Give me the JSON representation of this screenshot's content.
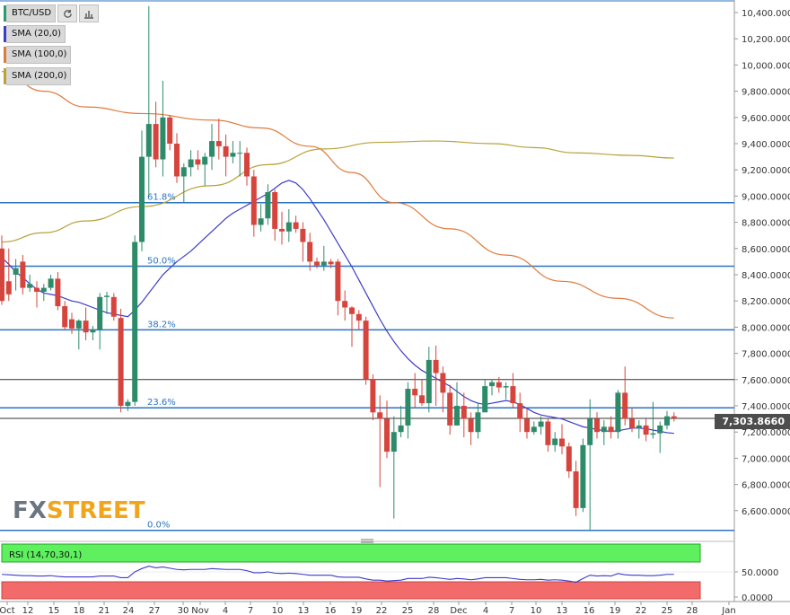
{
  "toolbar": {
    "symbol": "BTC/USD",
    "refresh_icon": "refresh-icon",
    "chart_icon": "bar-chart-icon"
  },
  "legend": [
    {
      "label": "SMA (20,0)",
      "color": "#3c3cc8"
    },
    {
      "label": "SMA (100,0)",
      "color": "#e07a3a"
    },
    {
      "label": "SMA (200,0)",
      "color": "#b8a23a"
    }
  ],
  "price_tag": "7,303.8660",
  "logo": {
    "fx": "FX",
    "street": "STREET"
  },
  "rsi": {
    "label": "RSI (14,70,30,1)",
    "levels": [
      "50.0000",
      "0.0000"
    ]
  },
  "chart_data": {
    "type": "candlestick",
    "title": "",
    "x_ticks": [
      "Oct",
      "12",
      "15",
      "18",
      "21",
      "24",
      "27",
      "30",
      "Nov",
      "4",
      "7",
      "10",
      "13",
      "16",
      "19",
      "22",
      "25",
      "28",
      "Dec",
      "4",
      "7",
      "10",
      "13",
      "16",
      "19",
      "22",
      "25",
      "28",
      "Jan"
    ],
    "y_ticks": [
      "10,400.0000",
      "10,200.0000",
      "10,000.0000",
      "9,800.0000",
      "9,600.0000",
      "9,400.0000",
      "9,200.0000",
      "9,000.0000",
      "8,800.0000",
      "8,600.0000",
      "8,400.0000",
      "8,200.0000",
      "8,000.0000",
      "7,800.0000",
      "7,600.0000",
      "7,400.0000",
      "7,200.0000",
      "7,000.0000",
      "6,800.0000",
      "6,600.0000"
    ],
    "ylim": [
      6450,
      10480
    ],
    "fib_levels": [
      {
        "label": "61.8%",
        "price": 8950
      },
      {
        "label": "50.0%",
        "price": 8465
      },
      {
        "label": "38.2%",
        "price": 7980
      },
      {
        "label": "23.6%",
        "price": 7385
      },
      {
        "label": "0.0%",
        "price": 6450
      }
    ],
    "horizontal_lines": [
      7600,
      7304
    ],
    "last_price": 7303.866,
    "candles": [
      [
        8600,
        8700,
        8170,
        8200
      ],
      [
        8350,
        8600,
        8200,
        8250
      ],
      [
        8400,
        8520,
        8280,
        8450
      ],
      [
        8500,
        8550,
        8250,
        8300
      ],
      [
        8300,
        8400,
        8270,
        8330
      ],
      [
        8300,
        8350,
        8150,
        8270
      ],
      [
        8270,
        8330,
        8200,
        8300
      ],
      [
        8300,
        8400,
        8280,
        8370
      ],
      [
        8370,
        8420,
        8130,
        8160
      ],
      [
        8160,
        8200,
        7980,
        8000
      ],
      [
        8060,
        8110,
        7950,
        7990
      ],
      [
        7990,
        8060,
        7830,
        8050
      ],
      [
        8050,
        8150,
        7900,
        7960
      ],
      [
        7960,
        8010,
        7900,
        7980
      ],
      [
        7980,
        8260,
        7830,
        8230
      ],
      [
        8230,
        8270,
        8100,
        8240
      ],
      [
        8230,
        8260,
        8050,
        8080
      ],
      [
        8070,
        8140,
        7350,
        7400
      ],
      [
        7400,
        7450,
        7360,
        7430
      ],
      [
        7430,
        8700,
        7400,
        8650
      ],
      [
        8650,
        9500,
        8580,
        9300
      ],
      [
        9300,
        10450,
        9000,
        9550
      ],
      [
        9550,
        9720,
        9220,
        9280
      ],
      [
        9280,
        9880,
        9150,
        9600
      ],
      [
        9600,
        9620,
        9350,
        9400
      ],
      [
        9400,
        9480,
        9100,
        9150
      ],
      [
        9150,
        9250,
        8950,
        9220
      ],
      [
        9220,
        9350,
        9150,
        9280
      ],
      [
        9280,
        9350,
        9200,
        9240
      ],
      [
        9240,
        9330,
        9080,
        9300
      ],
      [
        9300,
        9550,
        9200,
        9420
      ],
      [
        9420,
        9590,
        9280,
        9380
      ],
      [
        9380,
        9470,
        9150,
        9300
      ],
      [
        9300,
        9420,
        9250,
        9330
      ],
      [
        9330,
        9420,
        9150,
        9330
      ],
      [
        9330,
        9370,
        9080,
        9150
      ],
      [
        9150,
        9200,
        8690,
        8780
      ],
      [
        8780,
        8940,
        8730,
        8830
      ],
      [
        8830,
        9090,
        8780,
        9030
      ],
      [
        9030,
        9050,
        8660,
        8750
      ],
      [
        8750,
        8880,
        8630,
        8730
      ],
      [
        8730,
        8900,
        8650,
        8800
      ],
      [
        8800,
        8850,
        8720,
        8750
      ],
      [
        8750,
        8800,
        8500,
        8650
      ],
      [
        8650,
        8720,
        8430,
        8500
      ],
      [
        8500,
        8530,
        8450,
        8470
      ],
      [
        8470,
        8620,
        8430,
        8500
      ],
      [
        8500,
        8520,
        8450,
        8480
      ],
      [
        8500,
        8520,
        8090,
        8200
      ],
      [
        8200,
        8280,
        8050,
        8150
      ],
      [
        8150,
        8160,
        7850,
        8100
      ],
      [
        8100,
        8130,
        7980,
        8050
      ],
      [
        8050,
        8080,
        7560,
        7600
      ],
      [
        7600,
        7640,
        7290,
        7350
      ],
      [
        7350,
        7480,
        6780,
        7300
      ],
      [
        7300,
        7440,
        7000,
        7050
      ],
      [
        7050,
        7320,
        6540,
        7200
      ],
      [
        7200,
        7400,
        7160,
        7250
      ],
      [
        7250,
        7580,
        7150,
        7530
      ],
      [
        7530,
        7650,
        7380,
        7480
      ],
      [
        7480,
        7600,
        7400,
        7420
      ],
      [
        7420,
        7850,
        7350,
        7750
      ],
      [
        7750,
        7860,
        7400,
        7650
      ],
      [
        7650,
        7700,
        7350,
        7500
      ],
      [
        7500,
        7560,
        7180,
        7250
      ],
      [
        7250,
        7580,
        7250,
        7400
      ],
      [
        7400,
        7500,
        7160,
        7300
      ],
      [
        7300,
        7350,
        7100,
        7200
      ],
      [
        7200,
        7420,
        7150,
        7350
      ],
      [
        7350,
        7600,
        7350,
        7550
      ],
      [
        7550,
        7600,
        7480,
        7580
      ],
      [
        7580,
        7620,
        7500,
        7540
      ],
      [
        7540,
        7580,
        7450,
        7550
      ],
      [
        7550,
        7650,
        7380,
        7420
      ],
      [
        7420,
        7500,
        7200,
        7300
      ],
      [
        7300,
        7380,
        7150,
        7200
      ],
      [
        7200,
        7280,
        7180,
        7240
      ],
      [
        7240,
        7320,
        7180,
        7280
      ],
      [
        7280,
        7300,
        7050,
        7100
      ],
      [
        7100,
        7200,
        7050,
        7150
      ],
      [
        7150,
        7260,
        7030,
        7090
      ],
      [
        7090,
        7120,
        6850,
        6900
      ],
      [
        6900,
        6980,
        6560,
        6620
      ],
      [
        6620,
        7150,
        6590,
        7100
      ],
      [
        7100,
        7450,
        6450,
        7300
      ],
      [
        7300,
        7350,
        7150,
        7200
      ],
      [
        7200,
        7290,
        7100,
        7240
      ],
      [
        7240,
        7320,
        7150,
        7200
      ],
      [
        7200,
        7520,
        7150,
        7500
      ],
      [
        7500,
        7700,
        7250,
        7300
      ],
      [
        7300,
        7380,
        7200,
        7230
      ],
      [
        7230,
        7290,
        7150,
        7250
      ],
      [
        7250,
        7300,
        7130,
        7180
      ],
      [
        7180,
        7430,
        7150,
        7190
      ],
      [
        7190,
        7280,
        7040,
        7250
      ],
      [
        7250,
        7360,
        7220,
        7320
      ],
      [
        7320,
        7350,
        7280,
        7304
      ]
    ],
    "sma20": [
      8530,
      8480,
      8420,
      8380,
      8330,
      8290,
      8260,
      8250,
      8240,
      8220,
      8200,
      8190,
      8170,
      8150,
      8130,
      8110,
      8100,
      8090,
      8080,
      8130,
      8190,
      8260,
      8330,
      8400,
      8450,
      8500,
      8540,
      8580,
      8630,
      8680,
      8730,
      8780,
      8830,
      8870,
      8900,
      8930,
      8960,
      8990,
      9020,
      9060,
      9100,
      9120,
      9100,
      9050,
      8980,
      8900,
      8820,
      8730,
      8640,
      8550,
      8460,
      8360,
      8260,
      8160,
      8060,
      7970,
      7890,
      7820,
      7760,
      7710,
      7670,
      7640,
      7610,
      7580,
      7550,
      7510,
      7470,
      7440,
      7420,
      7410,
      7420,
      7430,
      7440,
      7430,
      7410,
      7380,
      7350,
      7330,
      7320,
      7310,
      7300,
      7280,
      7260,
      7240,
      7230,
      7220,
      7210,
      7205,
      7210,
      7220,
      7230,
      7230,
      7225,
      7215,
      7205,
      7195,
      7190
    ],
    "sma100_pts": [
      [
        0,
        9950
      ],
      [
        6,
        9800
      ],
      [
        12,
        9680
      ],
      [
        20,
        9630
      ],
      [
        30,
        9580
      ],
      [
        37,
        9520
      ],
      [
        44,
        9380
      ],
      [
        50,
        9180
      ],
      [
        56,
        8950
      ],
      [
        64,
        8750
      ],
      [
        72,
        8550
      ],
      [
        80,
        8350
      ],
      [
        88,
        8220
      ],
      [
        96,
        8070
      ]
    ],
    "sma200_pts": [
      [
        0,
        8650
      ],
      [
        6,
        8720
      ],
      [
        12,
        8810
      ],
      [
        20,
        8920
      ],
      [
        30,
        9080
      ],
      [
        38,
        9240
      ],
      [
        46,
        9360
      ],
      [
        54,
        9410
      ],
      [
        62,
        9420
      ],
      [
        70,
        9400
      ],
      [
        76,
        9370
      ],
      [
        82,
        9330
      ],
      [
        90,
        9310
      ],
      [
        96,
        9290
      ]
    ],
    "rsi_values": [
      44,
      43,
      42,
      41,
      41,
      40,
      40,
      41,
      39,
      38,
      38,
      38,
      38,
      38,
      40,
      40,
      40,
      36,
      36,
      50,
      58,
      64,
      60,
      62,
      59,
      56,
      55,
      56,
      56,
      56,
      58,
      57,
      56,
      56,
      56,
      53,
      48,
      48,
      50,
      47,
      46,
      47,
      46,
      44,
      42,
      42,
      42,
      42,
      38,
      37,
      37,
      37,
      33,
      30,
      30,
      28,
      29,
      30,
      34,
      34,
      34,
      37,
      36,
      34,
      32,
      34,
      33,
      31,
      33,
      36,
      36,
      36,
      36,
      34,
      32,
      31,
      31,
      32,
      30,
      31,
      30,
      28,
      25,
      34,
      42,
      40,
      41,
      40,
      46,
      43,
      42,
      42,
      41,
      41,
      42,
      44,
      44
    ]
  }
}
